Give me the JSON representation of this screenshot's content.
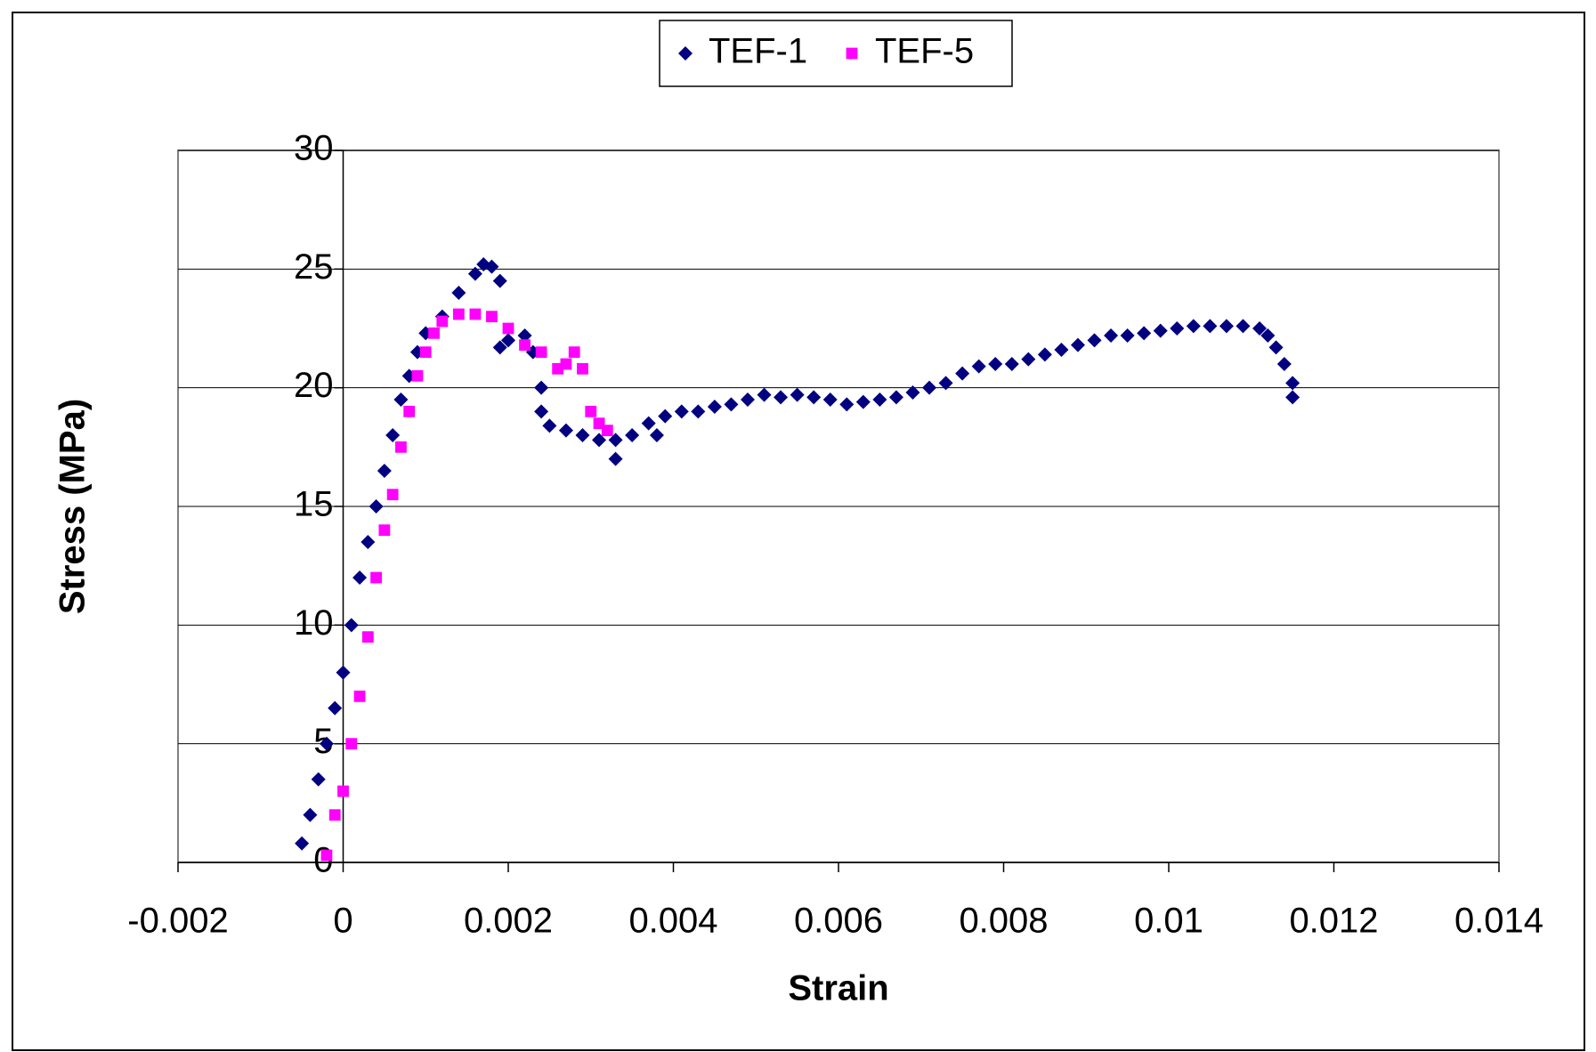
{
  "chart_data": {
    "type": "scatter",
    "x_label": "Strain",
    "y_label": "Stress (MPa)",
    "xlim": [
      -0.002,
      0.014
    ],
    "xticks": [
      -0.002,
      0,
      0.002,
      0.004,
      0.006,
      0.008,
      0.01,
      0.012,
      0.014
    ],
    "ylim": [
      0,
      30
    ],
    "yticks": [
      0,
      5,
      10,
      15,
      20,
      25,
      30
    ],
    "grid": true,
    "legend": "top",
    "series": [
      {
        "name": "TEF-1",
        "color": "#000080",
        "marker": "diamond",
        "x": [
          -0.0005,
          -0.0004,
          -0.0003,
          -0.0002,
          -0.0001,
          0,
          0.0001,
          0.0002,
          0.0003,
          0.0004,
          0.0005,
          0.0006,
          0.0007,
          0.0008,
          0.0009,
          0.001,
          0.0012,
          0.0014,
          0.0016,
          0.0017,
          0.0018,
          0.0019,
          0.0019,
          0.002,
          0.0022,
          0.0023,
          0.0024,
          0.0024,
          0.0025,
          0.0027,
          0.0029,
          0.0031,
          0.0033,
          0.0033,
          0.0035,
          0.0037,
          0.0038,
          0.0039,
          0.0041,
          0.0043,
          0.0045,
          0.0047,
          0.0049,
          0.0051,
          0.0053,
          0.0055,
          0.0057,
          0.0059,
          0.0061,
          0.0063,
          0.0065,
          0.0067,
          0.0069,
          0.0071,
          0.0073,
          0.0075,
          0.0077,
          0.0079,
          0.0081,
          0.0083,
          0.0085,
          0.0087,
          0.0089,
          0.0091,
          0.0093,
          0.0095,
          0.0097,
          0.0099,
          0.0101,
          0.0103,
          0.0105,
          0.0107,
          0.0109,
          0.0111,
          0.0112,
          0.0113,
          0.0114,
          0.0115,
          0.0115
        ],
        "values": [
          0.8,
          2,
          3.5,
          5,
          6.5,
          8,
          10,
          12,
          13.5,
          15,
          16.5,
          18,
          19.5,
          20.5,
          21.5,
          22.3,
          23,
          24,
          24.8,
          25.2,
          25.1,
          24.5,
          21.7,
          22,
          22.2,
          21.5,
          20,
          19,
          18.4,
          18.2,
          18,
          17.8,
          17.8,
          17,
          18,
          18.5,
          18,
          18.8,
          19,
          19,
          19.2,
          19.3,
          19.5,
          19.7,
          19.6,
          19.7,
          19.6,
          19.5,
          19.3,
          19.4,
          19.5,
          19.6,
          19.8,
          20,
          20.2,
          20.6,
          20.9,
          21,
          21,
          21.2,
          21.4,
          21.6,
          21.8,
          22,
          22.2,
          22.2,
          22.3,
          22.4,
          22.5,
          22.6,
          22.6,
          22.6,
          22.6,
          22.5,
          22.2,
          21.7,
          21,
          20.2,
          19.6
        ]
      },
      {
        "name": "TEF-5",
        "color": "#ff00ff",
        "marker": "square",
        "x": [
          -0.0002,
          -0.0001,
          0,
          0.0001,
          0.0002,
          0.0003,
          0.0004,
          0.0005,
          0.0006,
          0.0007,
          0.0008,
          0.0009,
          0.001,
          0.0011,
          0.0012,
          0.0014,
          0.0016,
          0.0018,
          0.002,
          0.0022,
          0.0024,
          0.0026,
          0.0027,
          0.0028,
          0.0029,
          0.003,
          0.0031,
          0.0032
        ],
        "values": [
          0.3,
          2,
          3,
          5,
          7,
          9.5,
          12,
          14,
          15.5,
          17.5,
          19,
          20.5,
          21.5,
          22.3,
          22.8,
          23.1,
          23.1,
          23,
          22.5,
          21.8,
          21.5,
          20.8,
          21,
          21.5,
          20.8,
          19,
          18.5,
          18.2
        ]
      }
    ]
  }
}
